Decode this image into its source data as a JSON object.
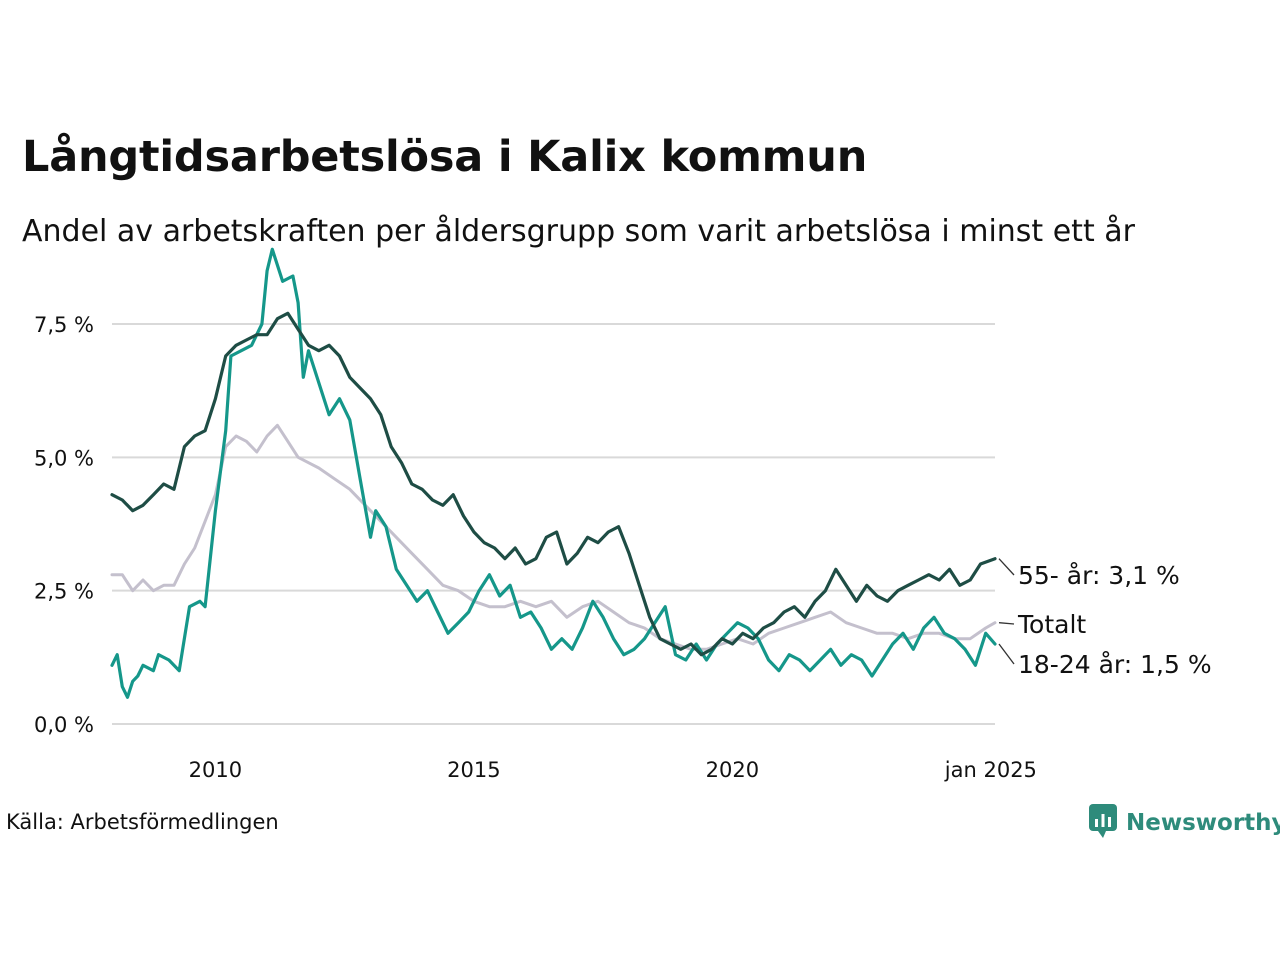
{
  "title": "Långtidsarbetslösa i Kalix kommun",
  "subtitle": "Andel av arbetskraften per åldersgrupp som varit arbetslösa i minst ett år",
  "source": "Källa: Arbetsförmedlingen",
  "brand": {
    "name": "Newsworthy",
    "icon": "newsworthy-logo-icon"
  },
  "colors": {
    "s55": "#1e4d45",
    "s1824": "#15978a",
    "total": "#c4c0cd",
    "grid": "#d9d9d9",
    "text": "#111111",
    "brand": "#2e8b7b"
  },
  "chart_data": {
    "type": "line",
    "xlabel": "",
    "ylabel": "",
    "xlim": [
      2008.0,
      2025.08
    ],
    "ylim": [
      0,
      9
    ],
    "y_ticks": [
      {
        "value": 0,
        "label": "0,0 %"
      },
      {
        "value": 2.5,
        "label": "2,5 %"
      },
      {
        "value": 5.0,
        "label": "5,0 %"
      },
      {
        "value": 7.5,
        "label": "7,5 %"
      }
    ],
    "x_ticks": [
      {
        "value": 2010,
        "label": "2010"
      },
      {
        "value": 2015,
        "label": "2015"
      },
      {
        "value": 2020,
        "label": "2020"
      },
      {
        "value": 2025,
        "label": "jan 2025"
      }
    ],
    "series": [
      {
        "name": "Totalt",
        "key": "total",
        "label": "Totalt",
        "points": [
          [
            2008.0,
            2.8
          ],
          [
            2008.2,
            2.8
          ],
          [
            2008.4,
            2.5
          ],
          [
            2008.6,
            2.7
          ],
          [
            2008.8,
            2.5
          ],
          [
            2009.0,
            2.6
          ],
          [
            2009.2,
            2.6
          ],
          [
            2009.4,
            3.0
          ],
          [
            2009.6,
            3.3
          ],
          [
            2009.8,
            3.8
          ],
          [
            2010.0,
            4.3
          ],
          [
            2010.2,
            5.2
          ],
          [
            2010.4,
            5.4
          ],
          [
            2010.6,
            5.3
          ],
          [
            2010.8,
            5.1
          ],
          [
            2011.0,
            5.4
          ],
          [
            2011.2,
            5.6
          ],
          [
            2011.4,
            5.3
          ],
          [
            2011.6,
            5.0
          ],
          [
            2011.8,
            4.9
          ],
          [
            2012.0,
            4.8
          ],
          [
            2012.3,
            4.6
          ],
          [
            2012.6,
            4.4
          ],
          [
            2012.9,
            4.1
          ],
          [
            2013.2,
            3.8
          ],
          [
            2013.5,
            3.5
          ],
          [
            2013.8,
            3.2
          ],
          [
            2014.1,
            2.9
          ],
          [
            2014.4,
            2.6
          ],
          [
            2014.7,
            2.5
          ],
          [
            2015.0,
            2.3
          ],
          [
            2015.3,
            2.2
          ],
          [
            2015.6,
            2.2
          ],
          [
            2015.9,
            2.3
          ],
          [
            2016.2,
            2.2
          ],
          [
            2016.5,
            2.3
          ],
          [
            2016.8,
            2.0
          ],
          [
            2017.1,
            2.2
          ],
          [
            2017.4,
            2.3
          ],
          [
            2017.7,
            2.1
          ],
          [
            2018.0,
            1.9
          ],
          [
            2018.3,
            1.8
          ],
          [
            2018.6,
            1.6
          ],
          [
            2018.9,
            1.5
          ],
          [
            2019.2,
            1.4
          ],
          [
            2019.5,
            1.4
          ],
          [
            2019.8,
            1.5
          ],
          [
            2020.1,
            1.6
          ],
          [
            2020.4,
            1.5
          ],
          [
            2020.7,
            1.7
          ],
          [
            2021.0,
            1.8
          ],
          [
            2021.3,
            1.9
          ],
          [
            2021.6,
            2.0
          ],
          [
            2021.9,
            2.1
          ],
          [
            2022.2,
            1.9
          ],
          [
            2022.5,
            1.8
          ],
          [
            2022.8,
            1.7
          ],
          [
            2023.1,
            1.7
          ],
          [
            2023.4,
            1.6
          ],
          [
            2023.7,
            1.7
          ],
          [
            2024.0,
            1.7
          ],
          [
            2024.3,
            1.6
          ],
          [
            2024.6,
            1.6
          ],
          [
            2024.9,
            1.8
          ],
          [
            2025.08,
            1.9
          ]
        ]
      },
      {
        "name": "18-24 år",
        "key": "s1824",
        "label": "18-24 år: 1,5 %",
        "points": [
          [
            2008.0,
            1.1
          ],
          [
            2008.1,
            1.3
          ],
          [
            2008.2,
            0.7
          ],
          [
            2008.3,
            0.5
          ],
          [
            2008.4,
            0.8
          ],
          [
            2008.5,
            0.9
          ],
          [
            2008.6,
            1.1
          ],
          [
            2008.8,
            1.0
          ],
          [
            2008.9,
            1.3
          ],
          [
            2009.1,
            1.2
          ],
          [
            2009.3,
            1.0
          ],
          [
            2009.5,
            2.2
          ],
          [
            2009.7,
            2.3
          ],
          [
            2009.8,
            2.2
          ],
          [
            2010.0,
            4.0
          ],
          [
            2010.2,
            5.5
          ],
          [
            2010.3,
            6.9
          ],
          [
            2010.5,
            7.0
          ],
          [
            2010.7,
            7.1
          ],
          [
            2010.9,
            7.5
          ],
          [
            2011.0,
            8.5
          ],
          [
            2011.1,
            8.9
          ],
          [
            2011.3,
            8.3
          ],
          [
            2011.5,
            8.4
          ],
          [
            2011.6,
            7.9
          ],
          [
            2011.7,
            6.5
          ],
          [
            2011.8,
            7.0
          ],
          [
            2012.0,
            6.4
          ],
          [
            2012.2,
            5.8
          ],
          [
            2012.4,
            6.1
          ],
          [
            2012.6,
            5.7
          ],
          [
            2012.8,
            4.6
          ],
          [
            2013.0,
            3.5
          ],
          [
            2013.1,
            4.0
          ],
          [
            2013.3,
            3.7
          ],
          [
            2013.5,
            2.9
          ],
          [
            2013.7,
            2.6
          ],
          [
            2013.9,
            2.3
          ],
          [
            2014.1,
            2.5
          ],
          [
            2014.3,
            2.1
          ],
          [
            2014.5,
            1.7
          ],
          [
            2014.7,
            1.9
          ],
          [
            2014.9,
            2.1
          ],
          [
            2015.1,
            2.5
          ],
          [
            2015.3,
            2.8
          ],
          [
            2015.5,
            2.4
          ],
          [
            2015.7,
            2.6
          ],
          [
            2015.9,
            2.0
          ],
          [
            2016.1,
            2.1
          ],
          [
            2016.3,
            1.8
          ],
          [
            2016.5,
            1.4
          ],
          [
            2016.7,
            1.6
          ],
          [
            2016.9,
            1.4
          ],
          [
            2017.1,
            1.8
          ],
          [
            2017.3,
            2.3
          ],
          [
            2017.5,
            2.0
          ],
          [
            2017.7,
            1.6
          ],
          [
            2017.9,
            1.3
          ],
          [
            2018.1,
            1.4
          ],
          [
            2018.3,
            1.6
          ],
          [
            2018.5,
            1.9
          ],
          [
            2018.7,
            2.2
          ],
          [
            2018.9,
            1.3
          ],
          [
            2019.1,
            1.2
          ],
          [
            2019.3,
            1.5
          ],
          [
            2019.5,
            1.2
          ],
          [
            2019.7,
            1.5
          ],
          [
            2019.9,
            1.7
          ],
          [
            2020.1,
            1.9
          ],
          [
            2020.3,
            1.8
          ],
          [
            2020.5,
            1.6
          ],
          [
            2020.7,
            1.2
          ],
          [
            2020.9,
            1.0
          ],
          [
            2021.1,
            1.3
          ],
          [
            2021.3,
            1.2
          ],
          [
            2021.5,
            1.0
          ],
          [
            2021.7,
            1.2
          ],
          [
            2021.9,
            1.4
          ],
          [
            2022.1,
            1.1
          ],
          [
            2022.3,
            1.3
          ],
          [
            2022.5,
            1.2
          ],
          [
            2022.7,
            0.9
          ],
          [
            2022.9,
            1.2
          ],
          [
            2023.1,
            1.5
          ],
          [
            2023.3,
            1.7
          ],
          [
            2023.5,
            1.4
          ],
          [
            2023.7,
            1.8
          ],
          [
            2023.9,
            2.0
          ],
          [
            2024.1,
            1.7
          ],
          [
            2024.3,
            1.6
          ],
          [
            2024.5,
            1.4
          ],
          [
            2024.7,
            1.1
          ],
          [
            2024.9,
            1.7
          ],
          [
            2025.08,
            1.5
          ]
        ]
      },
      {
        "name": "55- år",
        "key": "s55",
        "label": "55- år: 3,1 %",
        "points": [
          [
            2008.0,
            4.3
          ],
          [
            2008.2,
            4.2
          ],
          [
            2008.4,
            4.0
          ],
          [
            2008.6,
            4.1
          ],
          [
            2008.8,
            4.3
          ],
          [
            2009.0,
            4.5
          ],
          [
            2009.2,
            4.4
          ],
          [
            2009.4,
            5.2
          ],
          [
            2009.6,
            5.4
          ],
          [
            2009.8,
            5.5
          ],
          [
            2010.0,
            6.1
          ],
          [
            2010.2,
            6.9
          ],
          [
            2010.4,
            7.1
          ],
          [
            2010.6,
            7.2
          ],
          [
            2010.8,
            7.3
          ],
          [
            2011.0,
            7.3
          ],
          [
            2011.2,
            7.6
          ],
          [
            2011.4,
            7.7
          ],
          [
            2011.6,
            7.4
          ],
          [
            2011.8,
            7.1
          ],
          [
            2012.0,
            7.0
          ],
          [
            2012.2,
            7.1
          ],
          [
            2012.4,
            6.9
          ],
          [
            2012.6,
            6.5
          ],
          [
            2012.8,
            6.3
          ],
          [
            2013.0,
            6.1
          ],
          [
            2013.2,
            5.8
          ],
          [
            2013.4,
            5.2
          ],
          [
            2013.6,
            4.9
          ],
          [
            2013.8,
            4.5
          ],
          [
            2014.0,
            4.4
          ],
          [
            2014.2,
            4.2
          ],
          [
            2014.4,
            4.1
          ],
          [
            2014.6,
            4.3
          ],
          [
            2014.8,
            3.9
          ],
          [
            2015.0,
            3.6
          ],
          [
            2015.2,
            3.4
          ],
          [
            2015.4,
            3.3
          ],
          [
            2015.6,
            3.1
          ],
          [
            2015.8,
            3.3
          ],
          [
            2016.0,
            3.0
          ],
          [
            2016.2,
            3.1
          ],
          [
            2016.4,
            3.5
          ],
          [
            2016.6,
            3.6
          ],
          [
            2016.8,
            3.0
          ],
          [
            2017.0,
            3.2
          ],
          [
            2017.2,
            3.5
          ],
          [
            2017.4,
            3.4
          ],
          [
            2017.6,
            3.6
          ],
          [
            2017.8,
            3.7
          ],
          [
            2018.0,
            3.2
          ],
          [
            2018.2,
            2.6
          ],
          [
            2018.4,
            2.0
          ],
          [
            2018.6,
            1.6
          ],
          [
            2018.8,
            1.5
          ],
          [
            2019.0,
            1.4
          ],
          [
            2019.2,
            1.5
          ],
          [
            2019.4,
            1.3
          ],
          [
            2019.6,
            1.4
          ],
          [
            2019.8,
            1.6
          ],
          [
            2020.0,
            1.5
          ],
          [
            2020.2,
            1.7
          ],
          [
            2020.4,
            1.6
          ],
          [
            2020.6,
            1.8
          ],
          [
            2020.8,
            1.9
          ],
          [
            2021.0,
            2.1
          ],
          [
            2021.2,
            2.2
          ],
          [
            2021.4,
            2.0
          ],
          [
            2021.6,
            2.3
          ],
          [
            2021.8,
            2.5
          ],
          [
            2022.0,
            2.9
          ],
          [
            2022.2,
            2.6
          ],
          [
            2022.4,
            2.3
          ],
          [
            2022.6,
            2.6
          ],
          [
            2022.8,
            2.4
          ],
          [
            2023.0,
            2.3
          ],
          [
            2023.2,
            2.5
          ],
          [
            2023.4,
            2.6
          ],
          [
            2023.6,
            2.7
          ],
          [
            2023.8,
            2.8
          ],
          [
            2024.0,
            2.7
          ],
          [
            2024.2,
            2.9
          ],
          [
            2024.4,
            2.6
          ],
          [
            2024.6,
            2.7
          ],
          [
            2024.8,
            3.0
          ],
          [
            2025.08,
            3.1
          ]
        ]
      }
    ]
  }
}
